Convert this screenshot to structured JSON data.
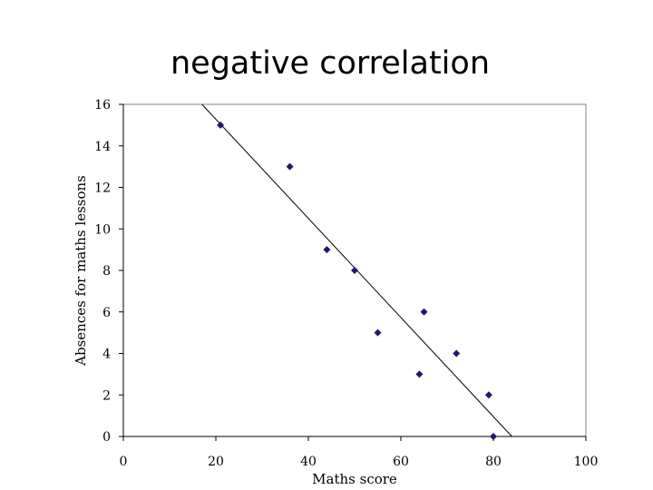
{
  "slide": {
    "title": "negative correlation"
  },
  "chart_data": {
    "type": "scatter",
    "title": "",
    "xlabel": "Maths score",
    "ylabel": "Absences for maths lessons",
    "xlim": [
      0,
      100
    ],
    "ylim": [
      0,
      16
    ],
    "xticks": [
      0,
      20,
      40,
      60,
      80,
      100
    ],
    "yticks": [
      0,
      2,
      4,
      6,
      8,
      10,
      12,
      14,
      16
    ],
    "grid": false,
    "legend": "none",
    "marker_color": "#1a1a6e",
    "series": [
      {
        "points": [
          {
            "x": 21,
            "y": 15
          },
          {
            "x": 36,
            "y": 13
          },
          {
            "x": 44,
            "y": 9
          },
          {
            "x": 50,
            "y": 8
          },
          {
            "x": 55,
            "y": 5
          },
          {
            "x": 64,
            "y": 3
          },
          {
            "x": 65,
            "y": 6
          },
          {
            "x": 72,
            "y": 4
          },
          {
            "x": 79,
            "y": 2
          },
          {
            "x": 80,
            "y": 0
          }
        ]
      }
    ],
    "trendline": {
      "type": "linear",
      "from": {
        "x": 17,
        "y": 16
      },
      "to": {
        "x": 84,
        "y": 0
      }
    }
  }
}
